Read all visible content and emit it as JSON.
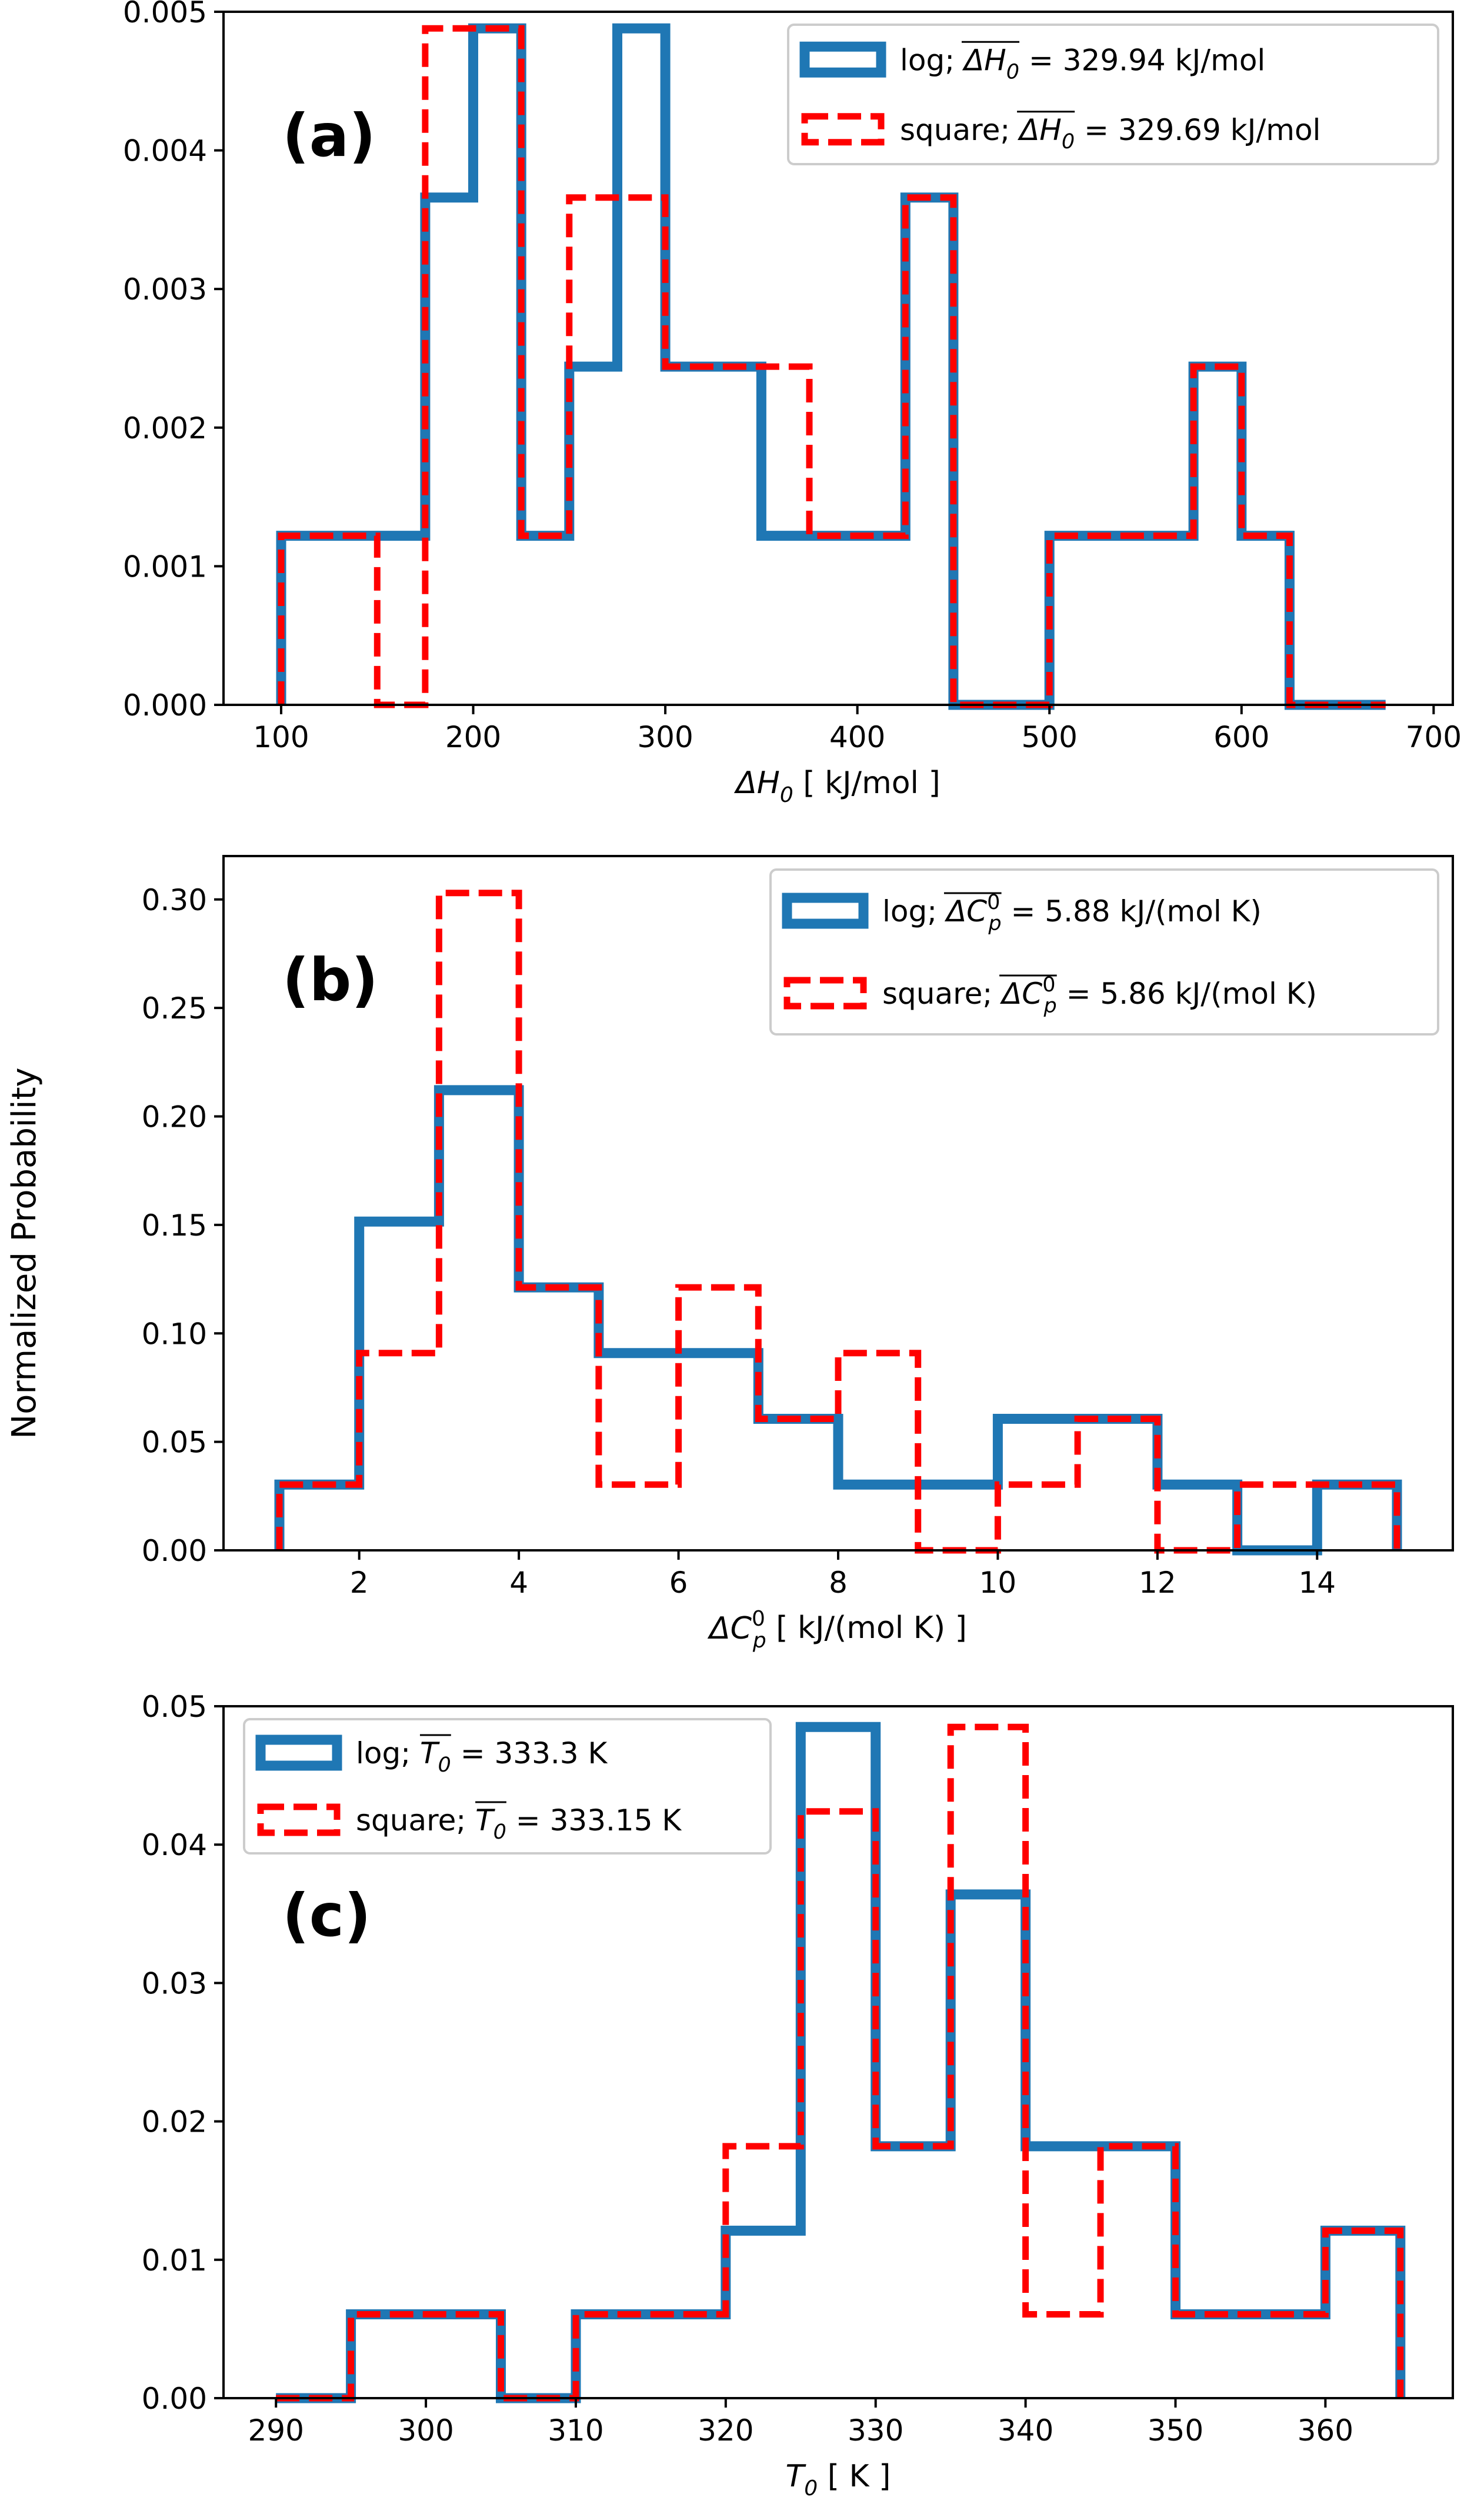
{
  "figure": {
    "ylabel": "Normalized Probability",
    "colors": {
      "log": "#1f77b4",
      "square": "#ff0000",
      "legend_border": "#cccccc"
    }
  },
  "chart_data": [
    {
      "type": "histogram-step",
      "panel_label": "(a)",
      "xlabel": {
        "prefix": "ΔH",
        "sub": "0",
        "sup": "",
        "suffix": " [ kJ/mol ]"
      },
      "xlim": [
        70,
        710
      ],
      "ylim": [
        0,
        0.005
      ],
      "xticks": [
        "100",
        "200",
        "300",
        "400",
        "500",
        "600",
        "700"
      ],
      "xtick_values": [
        100,
        200,
        300,
        400,
        500,
        600,
        700
      ],
      "yticks": [
        "0.000",
        "0.001",
        "0.002",
        "0.003",
        "0.004",
        "0.005"
      ],
      "ytick_values": [
        0,
        0.001,
        0.002,
        0.003,
        0.004,
        0.005
      ],
      "legend_position": "top-right",
      "series": [
        {
          "name": "log",
          "legend": {
            "prefix": "log;  ",
            "sym": "ΔH",
            "sub": "0",
            "sup": "",
            "value": " = 329.94 kJ/mol"
          },
          "edges": [
            100,
            125,
            150,
            175,
            200,
            225,
            250,
            275,
            300,
            325,
            350,
            375,
            400,
            425,
            450,
            475,
            500,
            525,
            550,
            575,
            600,
            625,
            650,
            675
          ],
          "values": [
            0.00122,
            0.00122,
            0.00122,
            0.00366,
            0.00488,
            0.00122,
            0.00244,
            0.00488,
            0.00244,
            0.00244,
            0.00122,
            0.00122,
            0.00122,
            0.00366,
            0,
            0,
            0.00122,
            0.00122,
            0.00122,
            0.00244,
            0.00122,
            0,
            0
          ]
        },
        {
          "name": "square",
          "legend": {
            "prefix": "square;  ",
            "sym": "ΔH",
            "sub": "0",
            "sup": "",
            "value": " = 329.69 kJ/mol"
          },
          "edges": [
            100,
            125,
            150,
            175,
            200,
            225,
            250,
            275,
            300,
            325,
            350,
            375,
            400,
            425,
            450,
            475,
            500,
            525,
            550,
            575,
            600,
            625,
            650,
            675
          ],
          "values": [
            0.00122,
            0.00122,
            0,
            0.00488,
            0.00488,
            0.00122,
            0.00366,
            0.00366,
            0.00244,
            0.00244,
            0.00244,
            0.00122,
            0.00122,
            0.00366,
            0,
            0,
            0.00122,
            0.00122,
            0.00122,
            0.00244,
            0.00122,
            0,
            0
          ]
        }
      ]
    },
    {
      "type": "histogram-step",
      "panel_label": "(b)",
      "xlabel": {
        "prefix": "ΔC",
        "sub": "p",
        "sup": "0",
        "suffix": " [ kJ/(mol K) ]"
      },
      "xlim": [
        0.3,
        15.7
      ],
      "ylim": [
        0,
        0.32
      ],
      "xticks": [
        "2",
        "4",
        "6",
        "8",
        "10",
        "12",
        "14"
      ],
      "xtick_values": [
        2,
        4,
        6,
        8,
        10,
        12,
        14
      ],
      "yticks": [
        "0.00",
        "0.05",
        "0.10",
        "0.15",
        "0.20",
        "0.25",
        "0.30"
      ],
      "ytick_values": [
        0,
        0.05,
        0.1,
        0.15,
        0.2,
        0.25,
        0.3
      ],
      "legend_position": "top-right",
      "series": [
        {
          "name": "log",
          "legend": {
            "prefix": "log;  ",
            "sym": "ΔC",
            "sub": "p",
            "sup": "0",
            "value": " = 5.88 kJ/(mol K)"
          },
          "edges": [
            1,
            2,
            3,
            4,
            5,
            6,
            7,
            8,
            9,
            10,
            11,
            12,
            13,
            14,
            15
          ],
          "values": [
            0.0303,
            0.1515,
            0.2121,
            0.1212,
            0.0909,
            0.0909,
            0.0606,
            0.0303,
            0.0303,
            0.0606,
            0.0606,
            0.0303,
            0,
            0.0303
          ]
        },
        {
          "name": "square",
          "legend": {
            "prefix": "square;  ",
            "sym": "ΔC",
            "sub": "p",
            "sup": "0",
            "value": " = 5.86 kJ/(mol K)"
          },
          "edges": [
            1,
            2,
            3,
            4,
            5,
            6,
            7,
            8,
            9,
            10,
            11,
            12,
            13,
            14,
            15
          ],
          "values": [
            0.0303,
            0.0909,
            0.303,
            0.1212,
            0.0303,
            0.1212,
            0.0606,
            0.0909,
            0,
            0.0303,
            0.0606,
            0,
            0.0303,
            0.0303
          ]
        }
      ]
    },
    {
      "type": "histogram-step",
      "panel_label": "(c)",
      "xlabel": {
        "prefix": "T",
        "sub": "0",
        "sup": "",
        "suffix": " [ K ]"
      },
      "xlim": [
        286.5,
        368.5
      ],
      "ylim": [
        0,
        0.05
      ],
      "xticks": [
        "290",
        "300",
        "310",
        "320",
        "330",
        "340",
        "350",
        "360"
      ],
      "xtick_values": [
        290,
        300,
        310,
        320,
        330,
        340,
        350,
        360
      ],
      "yticks": [
        "0.00",
        "0.01",
        "0.02",
        "0.03",
        "0.04",
        "0.05"
      ],
      "ytick_values": [
        0,
        0.01,
        0.02,
        0.03,
        0.04,
        0.05
      ],
      "legend_position": "top-left",
      "series": [
        {
          "name": "log",
          "legend": {
            "prefix": "log;  ",
            "sym": "T",
            "sub": "0",
            "sup": "",
            "value": " = 333.3 K"
          },
          "edges": [
            290,
            295,
            300,
            305,
            310,
            315,
            320,
            325,
            330,
            335,
            340,
            345,
            350,
            355,
            360,
            365
          ],
          "values": [
            0,
            0.00606,
            0.00606,
            0,
            0.00606,
            0.00606,
            0.0121,
            0.0485,
            0.0182,
            0.0364,
            0.0182,
            0.0182,
            0.00606,
            0.00606,
            0.0121
          ]
        },
        {
          "name": "square",
          "legend": {
            "prefix": "square;  ",
            "sym": "T",
            "sub": "0",
            "sup": "",
            "value": " = 333.15 K"
          },
          "edges": [
            290,
            295,
            300,
            305,
            310,
            315,
            320,
            325,
            330,
            335,
            340,
            345,
            350,
            355,
            360,
            365
          ],
          "values": [
            0,
            0.00606,
            0.00606,
            0,
            0.00606,
            0.00606,
            0.0182,
            0.0424,
            0.0182,
            0.0485,
            0.00606,
            0.0182,
            0.00606,
            0.00606,
            0.0121
          ]
        }
      ]
    }
  ]
}
